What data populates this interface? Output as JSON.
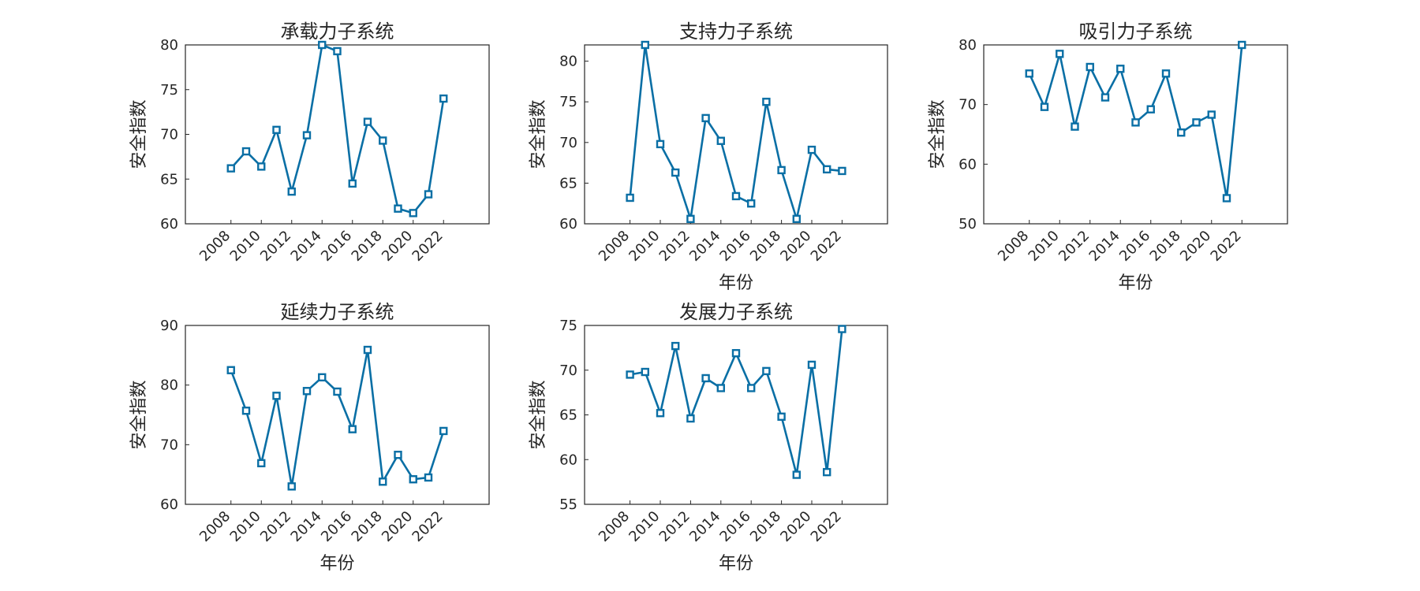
{
  "chart_data": [
    {
      "type": "line",
      "title": "承载力子系统",
      "xlabel": "",
      "ylabel": "安全指数",
      "xlim": [
        2005,
        2025
      ],
      "ylim": [
        60,
        80
      ],
      "xticks": [
        "2008",
        "2010",
        "2012",
        "2014",
        "2016",
        "2018",
        "2020",
        "2022"
      ],
      "yticks": [
        "60",
        "65",
        "70",
        "75",
        "80"
      ],
      "grid": true,
      "x": [
        2008,
        2009,
        2010,
        2011,
        2012,
        2013,
        2014,
        2015,
        2016,
        2017,
        2018,
        2019,
        2020,
        2021,
        2022
      ],
      "series": [
        {
          "values": [
            66.2,
            68.1,
            66.4,
            70.5,
            63.6,
            69.9,
            80.0,
            79.3,
            64.5,
            71.4,
            69.3,
            61.7,
            61.2,
            63.3,
            74.0
          ]
        }
      ]
    },
    {
      "type": "line",
      "title": "支持力子系统",
      "xlabel": "年份",
      "ylabel": "安全指数",
      "xlim": [
        2005,
        2025
      ],
      "ylim": [
        60,
        82
      ],
      "xticks": [
        "2008",
        "2010",
        "2012",
        "2014",
        "2016",
        "2018",
        "2020",
        "2022"
      ],
      "yticks": [
        "60",
        "65",
        "70",
        "75",
        "80"
      ],
      "grid": true,
      "x": [
        2008,
        2009,
        2010,
        2011,
        2012,
        2013,
        2014,
        2015,
        2016,
        2017,
        2018,
        2019,
        2020,
        2021,
        2022
      ],
      "series": [
        {
          "values": [
            63.2,
            82.0,
            69.8,
            66.3,
            60.6,
            73.0,
            70.2,
            63.4,
            62.5,
            75.0,
            66.6,
            60.6,
            69.1,
            66.7,
            66.5
          ]
        }
      ]
    },
    {
      "type": "line",
      "title": "吸引力子系统",
      "xlabel": "年份",
      "ylabel": "安全指数",
      "xlim": [
        2005,
        2025
      ],
      "ylim": [
        50,
        80
      ],
      "xticks": [
        "2008",
        "2010",
        "2012",
        "2014",
        "2016",
        "2018",
        "2020",
        "2022"
      ],
      "yticks": [
        "50",
        "60",
        "70",
        "80"
      ],
      "grid": true,
      "x": [
        2008,
        2009,
        2010,
        2011,
        2012,
        2013,
        2014,
        2015,
        2016,
        2017,
        2018,
        2019,
        2020,
        2021,
        2022
      ],
      "series": [
        {
          "values": [
            75.2,
            69.6,
            78.5,
            66.3,
            76.3,
            71.2,
            76.0,
            67.0,
            69.2,
            75.2,
            65.3,
            67.0,
            68.3,
            54.3,
            80.0
          ]
        }
      ]
    },
    {
      "type": "line",
      "title": "延续力子系统",
      "xlabel": "年份",
      "ylabel": "安全指数",
      "xlim": [
        2005,
        2025
      ],
      "ylim": [
        60,
        90
      ],
      "xticks": [
        "2008",
        "2010",
        "2012",
        "2014",
        "2016",
        "2018",
        "2020",
        "2022"
      ],
      "yticks": [
        "60",
        "70",
        "80",
        "90"
      ],
      "grid": true,
      "x": [
        2008,
        2009,
        2010,
        2011,
        2012,
        2013,
        2014,
        2015,
        2016,
        2017,
        2018,
        2019,
        2020,
        2021,
        2022
      ],
      "series": [
        {
          "values": [
            82.5,
            75.7,
            66.9,
            78.2,
            63.0,
            79.0,
            81.3,
            78.9,
            72.6,
            85.9,
            63.8,
            68.3,
            64.2,
            64.5,
            72.3
          ]
        }
      ]
    },
    {
      "type": "line",
      "title": "发展力子系统",
      "xlabel": "年份",
      "ylabel": "安全指数",
      "xlim": [
        2005,
        2025
      ],
      "ylim": [
        55,
        75
      ],
      "xticks": [
        "2008",
        "2010",
        "2012",
        "2014",
        "2016",
        "2018",
        "2020",
        "2022"
      ],
      "yticks": [
        "55",
        "60",
        "65",
        "70",
        "75"
      ],
      "grid": true,
      "x": [
        2008,
        2009,
        2010,
        2011,
        2012,
        2013,
        2014,
        2015,
        2016,
        2017,
        2018,
        2019,
        2020,
        2021,
        2022
      ],
      "series": [
        {
          "values": [
            69.5,
            69.8,
            65.2,
            72.7,
            64.6,
            69.1,
            68.0,
            71.9,
            68.0,
            69.9,
            64.8,
            58.3,
            70.6,
            58.6,
            74.6
          ]
        }
      ]
    }
  ]
}
